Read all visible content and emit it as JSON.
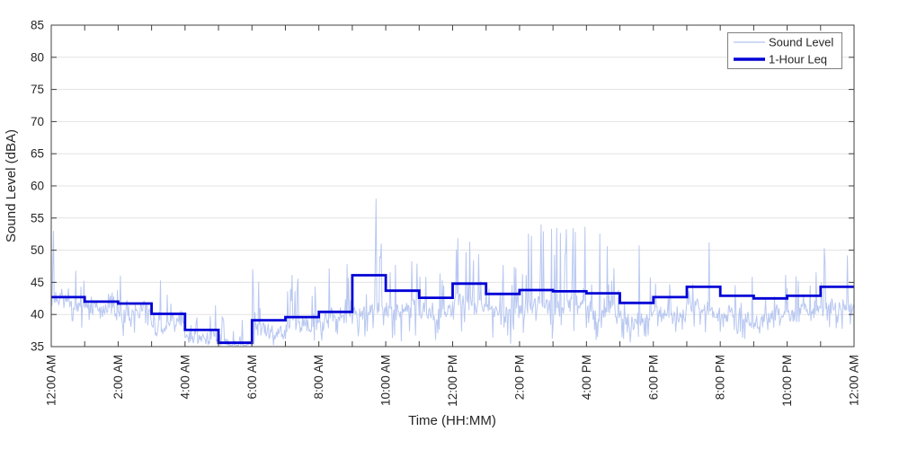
{
  "figure": {
    "background": "#ffffff"
  },
  "chart_data": {
    "type": "line",
    "title": "",
    "xlabel": "Time (HH:MM)",
    "ylabel": "Sound Level (dBA)",
    "x_axis_span_hours": 24,
    "xlim_labels": [
      "12:00 AM",
      "12:00 AM"
    ],
    "ylim": [
      35,
      85
    ],
    "y_ticks": [
      35,
      40,
      45,
      50,
      55,
      60,
      65,
      70,
      75,
      80,
      85
    ],
    "x_major_tick_hours": [
      0,
      2,
      4,
      6,
      8,
      10,
      12,
      14,
      16,
      18,
      20,
      22,
      24
    ],
    "x_major_tick_labels": [
      "12:00 AM",
      "2:00 AM",
      "4:00 AM",
      "6:00 AM",
      "8:00 AM",
      "10:00 AM",
      "12:00 PM",
      "2:00 PM",
      "4:00 PM",
      "6:00 PM",
      "8:00 PM",
      "10:00 PM",
      "12:00 AM"
    ],
    "x_minor_tick_every_hours": 1,
    "grid": "horizontal-only",
    "grid_color": "#e3e3e3",
    "axis_color": "#404040",
    "tick_label_color": "#262626",
    "legend": {
      "position": "top-right",
      "border_color": "#7f7f7f",
      "background": "#ffffff",
      "entries": [
        {
          "label": "Sound Level",
          "color": "#b3c3f0",
          "line_width": 1.3
        },
        {
          "label": "1-Hour Leq",
          "color": "#0000d6",
          "line_width": 3.6
        }
      ]
    },
    "series": [
      {
        "name": "Sound Level",
        "type": "noisy-line",
        "color": "#b3c3f0",
        "hourly_envelope_base_min_peak": [
          [
            41.5,
            38.0,
            48.0
          ],
          [
            41.0,
            38.5,
            46.5
          ],
          [
            40.5,
            37.0,
            46.5
          ],
          [
            38.5,
            36.0,
            46.0
          ],
          [
            36.2,
            35.2,
            45.0
          ],
          [
            35.4,
            35.2,
            40.0
          ],
          [
            37.5,
            35.3,
            47.5
          ],
          [
            38.0,
            35.3,
            47.0
          ],
          [
            39.5,
            36.0,
            48.5
          ],
          [
            41.0,
            37.0,
            52.0
          ],
          [
            41.0,
            36.0,
            49.0
          ],
          [
            40.0,
            35.5,
            52.0
          ],
          [
            41.5,
            36.0,
            53.5
          ],
          [
            40.5,
            36.0,
            50.0
          ],
          [
            41.0,
            36.0,
            55.0
          ],
          [
            41.0,
            36.0,
            54.0
          ],
          [
            40.5,
            36.0,
            53.0
          ],
          [
            39.5,
            36.0,
            52.5
          ],
          [
            40.0,
            36.5,
            50.5
          ],
          [
            41.0,
            37.0,
            52.0
          ],
          [
            40.0,
            36.5,
            50.0
          ],
          [
            39.5,
            37.0,
            48.5
          ],
          [
            40.0,
            37.5,
            47.0
          ],
          [
            41.5,
            38.0,
            51.0
          ]
        ],
        "notable_peaks": [
          {
            "hour": 0.07,
            "value": 53.0
          },
          {
            "hour": 9.72,
            "value": 58.0
          },
          {
            "hour": 14.65,
            "value": 54.0
          },
          {
            "hour": 15.6,
            "value": 53.4
          }
        ],
        "noise_floor": 35.2
      },
      {
        "name": "1-Hour Leq",
        "type": "stairs",
        "color": "#0000d6",
        "line_width": 2.8,
        "hourly_leq": [
          42.7,
          42.0,
          41.7,
          40.1,
          37.6,
          35.6,
          39.1,
          39.6,
          40.4,
          46.1,
          43.7,
          42.6,
          44.8,
          43.2,
          43.8,
          43.6,
          43.3,
          41.8,
          42.7,
          44.3,
          42.9,
          42.5,
          42.9,
          44.3
        ]
      }
    ]
  }
}
